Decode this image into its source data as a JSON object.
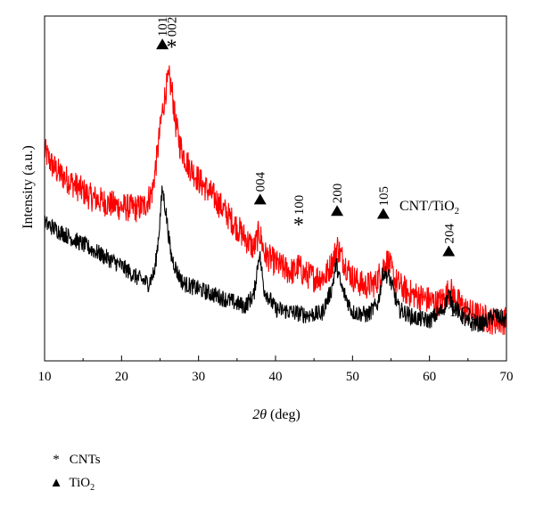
{
  "chart_data": {
    "type": "line",
    "xlabel": "2θ (deg)",
    "ylabel": "Intensity (a.u.)",
    "xlim": [
      10,
      70
    ],
    "xticks": [
      10,
      20,
      30,
      40,
      50,
      60,
      70
    ],
    "yticks_shown": false,
    "grid": false,
    "series": [
      {
        "name": "CNT/TiO2",
        "label_text": "CNT/TiO",
        "label_sub": "2",
        "color": "#ff0000",
        "noise": 5,
        "x": [
          10,
          11,
          12,
          14,
          16,
          18,
          20,
          22,
          23,
          24,
          24.6,
          25.2,
          25.8,
          26.2,
          26.6,
          27,
          27.6,
          28.5,
          30,
          32,
          34,
          36,
          37.2,
          37.9,
          38.6,
          40,
          41.5,
          42.5,
          43,
          43.6,
          45,
          46.5,
          47.5,
          48,
          48.6,
          50,
          51.5,
          53,
          54,
          54.6,
          55.5,
          57,
          59,
          61,
          62,
          62.6,
          63.5,
          65,
          67,
          68,
          69,
          70
        ],
        "y": [
          58,
          53,
          50,
          46,
          42,
          40,
          38.5,
          38,
          39,
          44,
          56,
          70,
          80,
          83,
          78,
          68,
          60,
          54,
          48,
          42,
          35,
          28,
          24,
          30,
          22,
          19,
          16.5,
          16,
          18,
          15.5,
          14,
          14.5,
          20,
          25,
          21,
          14,
          11,
          12,
          18,
          20,
          13,
          9,
          7,
          5,
          7,
          10,
          6,
          2,
          0,
          -1,
          -1,
          -1
        ]
      },
      {
        "name": "TiO2",
        "label_text": "TiO",
        "label_sub": "2",
        "color": "#000000",
        "noise": 3,
        "x": [
          10,
          12,
          14,
          16,
          18,
          20,
          22,
          23.5,
          24.3,
          24.8,
          25.3,
          25.8,
          26.4,
          27.2,
          28,
          30,
          32,
          34,
          36,
          37.2,
          37.9,
          38.5,
          40,
          42,
          44,
          46,
          47.3,
          47.9,
          48.5,
          50,
          52,
          53.3,
          54,
          54.8,
          56,
          58,
          60,
          61.8,
          62.5,
          63.2,
          65,
          67,
          68.5,
          69,
          70
        ],
        "y": [
          33,
          30,
          27,
          24,
          21,
          18,
          14,
          12,
          16,
          28,
          45,
          36,
          22,
          16,
          12,
          10,
          8,
          6,
          4,
          8,
          23,
          10,
          3,
          2,
          1,
          1.5,
          10,
          19,
          11,
          2,
          1,
          5,
          16,
          14,
          3,
          0,
          -1,
          3,
          8,
          4,
          -2,
          -2,
          1,
          0,
          -1
        ]
      }
    ],
    "y_range_plot": [
      -15,
      105
    ],
    "peak_labels": [
      {
        "x": 25.3,
        "y": 95,
        "marker": "triangle",
        "text": "101"
      },
      {
        "x": 26.5,
        "y": 95,
        "marker": "asterisk",
        "text": "002"
      },
      {
        "x": 38.0,
        "y": 41,
        "marker": "triangle",
        "text": "004"
      },
      {
        "x": 43.0,
        "y": 33,
        "marker": "asterisk",
        "text": "100"
      },
      {
        "x": 48.0,
        "y": 37,
        "marker": "triangle",
        "text": "200"
      },
      {
        "x": 54.0,
        "y": 36,
        "marker": "triangle",
        "text": "105"
      },
      {
        "x": 62.5,
        "y": 23,
        "marker": "triangle",
        "text": "204"
      }
    ],
    "legend": [
      {
        "marker": "asterisk",
        "symbol": "*",
        "text": "CNTs",
        "sub": ""
      },
      {
        "marker": "triangle",
        "symbol": "▲",
        "text": "TiO",
        "sub": "2"
      }
    ]
  }
}
